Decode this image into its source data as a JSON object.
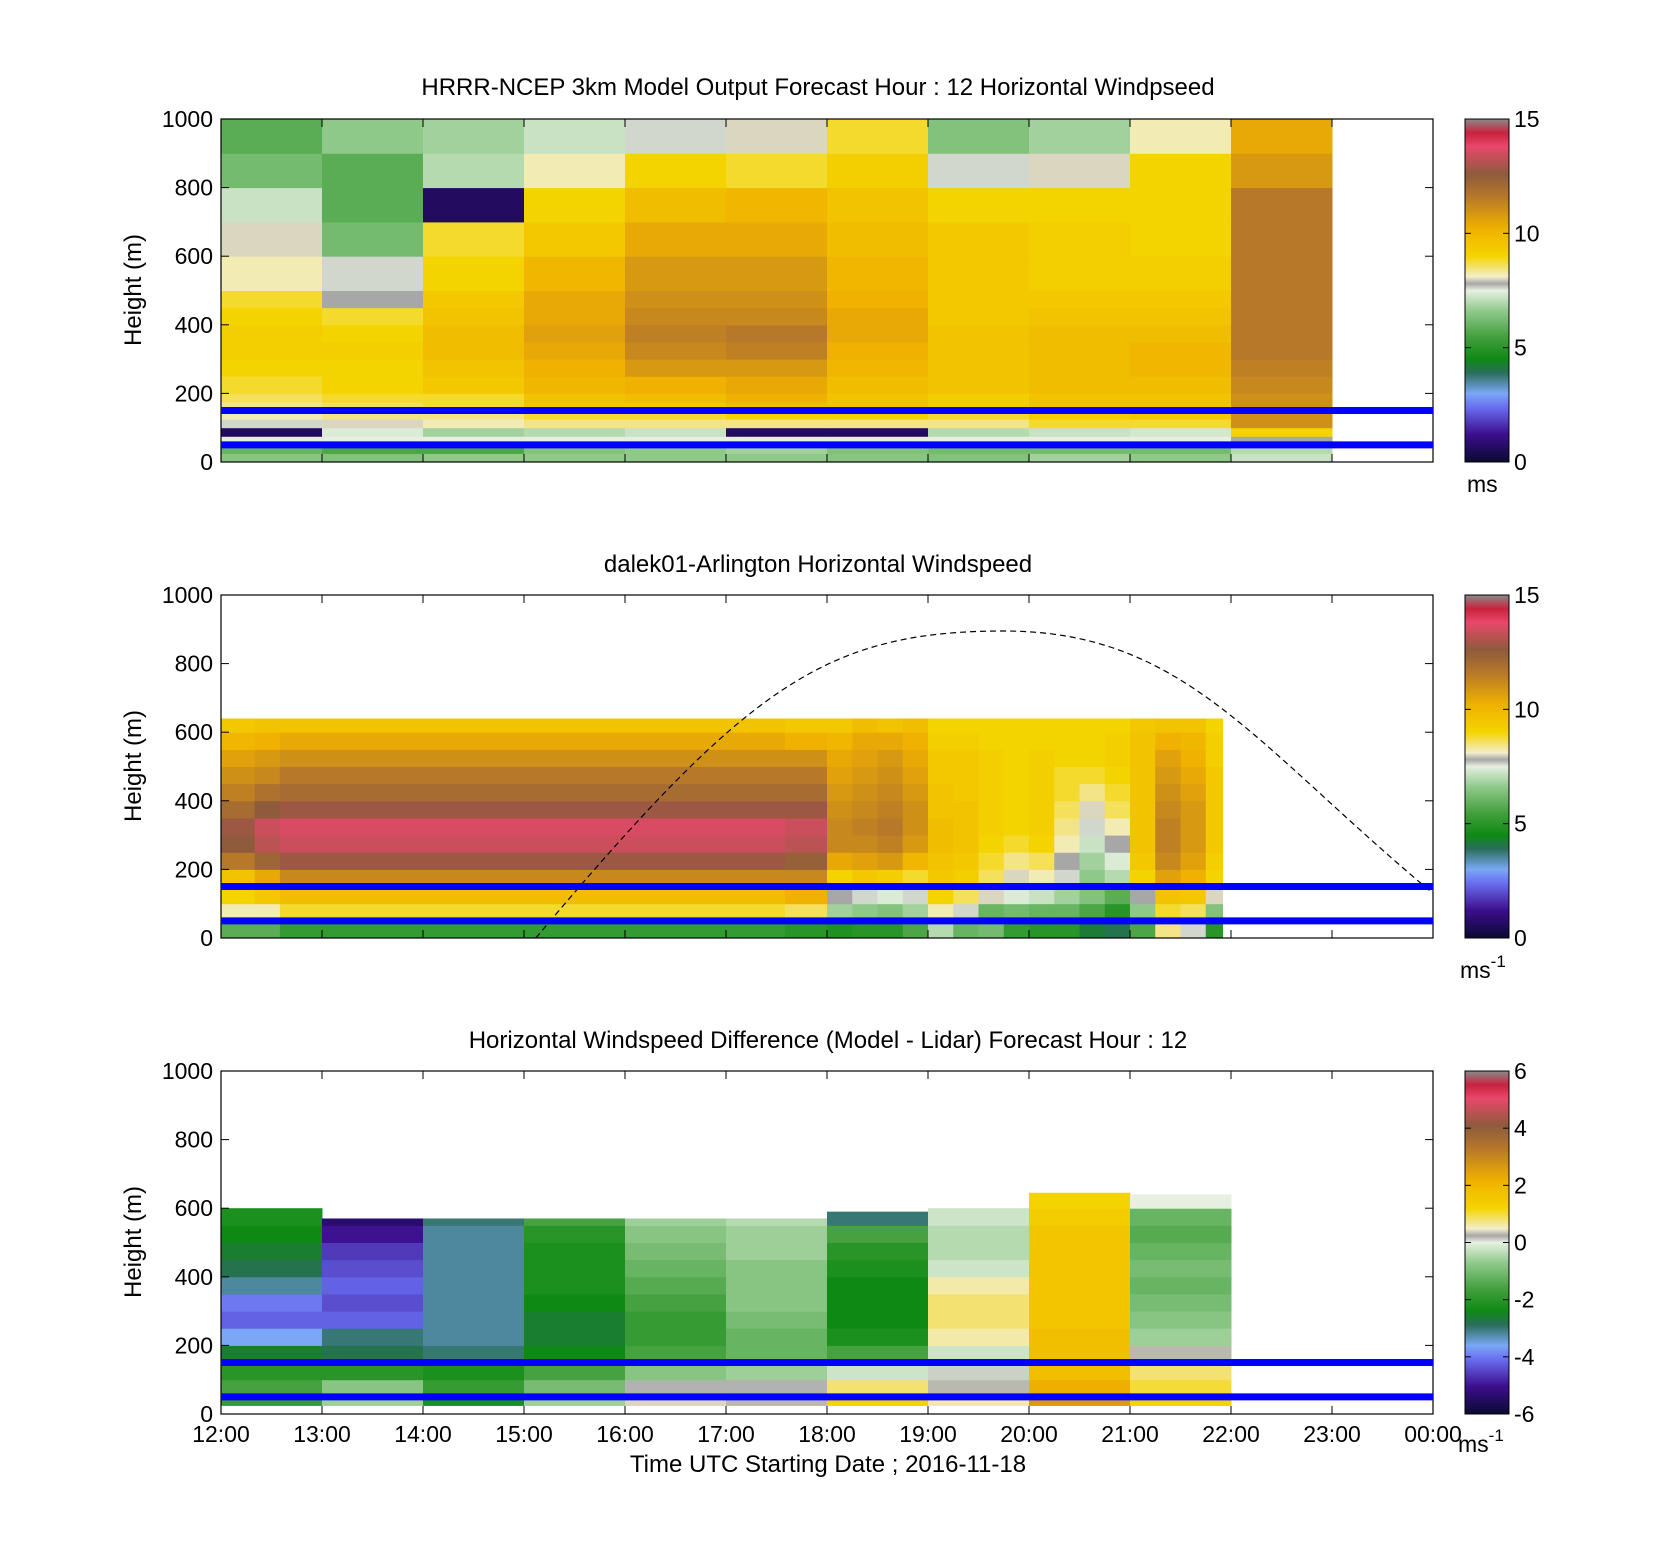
{
  "figure": {
    "xlabel": "Time UTC  Starting Date ; 2016-11-18",
    "xticks": [
      "12:00",
      "13:00",
      "14:00",
      "15:00",
      "16:00",
      "17:00",
      "18:00",
      "19:00",
      "20:00",
      "21:00",
      "22:00",
      "23:00",
      "00:00"
    ]
  },
  "chart_data": [
    {
      "type": "heatmap",
      "title": "HRRR-NCEP 3km Model Output   Forecast Hour : 12 Horizontal Windpseed",
      "ylabel": "Height (m)",
      "yticks": [
        "0",
        "200",
        "400",
        "600",
        "800",
        "1000"
      ],
      "ylim": [
        0,
        1000
      ],
      "x_range": [
        "12:00",
        "00:00"
      ],
      "colorbar": {
        "ticks": [
          "0",
          "5",
          "10",
          "15"
        ],
        "range": [
          0,
          15
        ],
        "unit": "ms"
      },
      "reference_lines_m": [
        50,
        150
      ],
      "columns_start_hour": 12,
      "height_levels_m": [
        0,
        25,
        50,
        75,
        100,
        125,
        150,
        175,
        200,
        250,
        300,
        350,
        400,
        450,
        500,
        600,
        700,
        800,
        900,
        1000
      ],
      "values_ms": [
        [
          6.5,
          6.4,
          6.6,
          6.6,
          6.6,
          6.6,
          6.5,
          6.4,
          6.8,
          6.6,
          7.2
        ],
        [
          6.0,
          5.6,
          5.6,
          6.4,
          6.6,
          6.8,
          6.4,
          6.2,
          6.2,
          6.2,
          7.0
        ],
        [
          7.5,
          7.5,
          7.5,
          7.5,
          7.5,
          7.5,
          7.5,
          7.5,
          7.5,
          7.5,
          7.8
        ],
        [
          0.6,
          7.4,
          6.8,
          7.0,
          7.2,
          0.6,
          0.6,
          7.0,
          7.2,
          7.3,
          9.0
        ],
        [
          7.6,
          8.0,
          8.2,
          8.4,
          8.4,
          8.4,
          8.4,
          8.4,
          8.8,
          8.8,
          11.0
        ],
        [
          8.2,
          8.4,
          8.4,
          8.8,
          8.8,
          9.0,
          9.0,
          8.8,
          9.2,
          9.4,
          11.0
        ],
        [
          8.4,
          8.6,
          8.8,
          9.4,
          9.4,
          9.8,
          9.6,
          9.2,
          9.6,
          9.6,
          11.0
        ],
        [
          8.6,
          8.8,
          8.8,
          9.6,
          9.8,
          10.2,
          9.6,
          9.2,
          9.6,
          9.6,
          11.0
        ],
        [
          8.8,
          9.0,
          9.4,
          10.0,
          10.2,
          10.4,
          9.8,
          9.6,
          9.8,
          9.8,
          11.2
        ],
        [
          9.0,
          9.0,
          9.6,
          10.2,
          10.8,
          10.8,
          10.0,
          9.6,
          9.8,
          10.0,
          11.4
        ],
        [
          9.2,
          9.2,
          9.8,
          10.4,
          11.2,
          11.4,
          10.2,
          9.6,
          9.8,
          10.0,
          11.6
        ],
        [
          9.2,
          9.0,
          9.8,
          10.6,
          11.4,
          11.6,
          10.4,
          9.6,
          9.8,
          9.8,
          11.6
        ],
        [
          9.0,
          8.8,
          9.6,
          10.4,
          11.2,
          11.2,
          10.4,
          9.4,
          9.6,
          9.6,
          11.6
        ],
        [
          8.8,
          7.8,
          9.4,
          10.4,
          11.0,
          11.0,
          10.2,
          9.4,
          9.4,
          9.4,
          11.6
        ],
        [
          8.2,
          7.6,
          9.0,
          10.0,
          10.8,
          10.8,
          10.0,
          9.4,
          9.2,
          9.2,
          11.6
        ],
        [
          8.0,
          6.2,
          8.8,
          9.4,
          10.4,
          10.4,
          9.8,
          9.4,
          9.2,
          9.0,
          11.6
        ],
        [
          7.2,
          5.8,
          0.6,
          9.0,
          9.8,
          10.0,
          9.6,
          9.0,
          9.0,
          9.0,
          11.6
        ],
        [
          6.2,
          5.8,
          7.0,
          8.2,
          9.0,
          8.8,
          9.2,
          7.6,
          8.0,
          9.0,
          10.8
        ],
        [
          5.8,
          6.6,
          6.8,
          7.2,
          7.6,
          8.0,
          8.8,
          6.4,
          6.8,
          8.2,
          10.4
        ],
        [
          5.8,
          7.2,
          6.6,
          6.4,
          6.6,
          8.0,
          8.0,
          6.4,
          6.4,
          7.6,
          10.0
        ]
      ]
    },
    {
      "type": "heatmap",
      "title": "dalek01-Arlington  Horizontal Windspeed",
      "ylabel": "Height (m)",
      "yticks": [
        "0",
        "200",
        "400",
        "600",
        "800",
        "1000"
      ],
      "ylim": [
        0,
        1000
      ],
      "x_range": [
        "12:00",
        "00:00"
      ],
      "colorbar": {
        "ticks": [
          "0",
          "5",
          "10",
          "15"
        ],
        "range": [
          0,
          15
        ],
        "unit": "ms",
        "unit_superscript": "-1"
      },
      "reference_lines_m": [
        50,
        150
      ],
      "dashed_curve": {
        "start": [
          "15:07",
          0
        ],
        "peak": [
          "19:45",
          895
        ],
        "end": [
          "00:00",
          130
        ]
      },
      "column_times": [
        "12:00",
        "12:20",
        "12:35",
        "17:35",
        "18:00",
        "18:15",
        "18:30",
        "18:45",
        "19:00",
        "19:15",
        "19:30",
        "19:45",
        "20:00",
        "20:15",
        "20:30",
        "20:45",
        "21:00",
        "21:15",
        "21:30",
        "21:45"
      ],
      "value_rows_m": [
        0,
        50,
        100,
        150,
        200,
        250,
        300,
        350,
        400,
        450,
        500,
        550,
        600
      ],
      "values_ms": [
        [
          5.8,
          5.8,
          5.2,
          5.0,
          4.8,
          5.0,
          5.0,
          5.6,
          7.0,
          6.0,
          6.2,
          5.2,
          5.0,
          5.0,
          4.2,
          4.0,
          5.6,
          8.4,
          7.6,
          5.0
        ],
        [
          8.2,
          8.2,
          8.8,
          8.6,
          6.8,
          6.6,
          6.4,
          6.8,
          8.2,
          7.6,
          6.0,
          6.2,
          6.0,
          6.0,
          5.6,
          5.0,
          6.6,
          8.8,
          8.6,
          6.4
        ],
        [
          9.0,
          9.4,
          9.8,
          10.2,
          7.8,
          7.6,
          7.4,
          7.6,
          9.0,
          8.6,
          8.0,
          7.4,
          7.2,
          6.8,
          6.4,
          5.8,
          7.8,
          9.6,
          9.4,
          8.0
        ],
        [
          9.6,
          10.4,
          11.2,
          11.2,
          9.0,
          9.4,
          9.2,
          8.8,
          9.4,
          9.2,
          8.6,
          8.0,
          8.2,
          7.6,
          6.6,
          7.0,
          9.0,
          10.6,
          10.2,
          9.0
        ],
        [
          11.6,
          12.2,
          12.8,
          12.4,
          10.4,
          10.6,
          10.8,
          10.0,
          9.6,
          9.4,
          8.8,
          8.4,
          8.6,
          7.8,
          6.8,
          7.4,
          9.4,
          11.2,
          10.6,
          9.2
        ],
        [
          12.6,
          13.2,
          13.4,
          13.2,
          11.2,
          11.2,
          11.4,
          10.8,
          9.8,
          9.6,
          9.0,
          8.8,
          9.0,
          8.2,
          7.2,
          7.8,
          9.6,
          11.4,
          10.8,
          9.4
        ],
        [
          12.8,
          13.4,
          13.6,
          13.4,
          11.2,
          11.4,
          11.6,
          11.0,
          9.8,
          9.6,
          9.2,
          9.0,
          9.2,
          8.4,
          7.6,
          8.2,
          9.6,
          11.4,
          10.8,
          9.4
        ],
        [
          12.0,
          12.6,
          12.8,
          12.8,
          11.0,
          11.2,
          11.4,
          11.0,
          9.6,
          9.6,
          9.2,
          9.0,
          9.2,
          8.6,
          8.0,
          8.6,
          9.6,
          11.2,
          10.8,
          9.4
        ],
        [
          11.4,
          11.8,
          12.0,
          12.0,
          10.8,
          11.0,
          11.2,
          10.8,
          9.6,
          9.4,
          9.2,
          9.0,
          9.2,
          8.8,
          8.4,
          8.8,
          9.6,
          11.0,
          10.6,
          9.4
        ],
        [
          11.0,
          11.2,
          11.6,
          11.6,
          10.6,
          10.8,
          11.0,
          10.6,
          9.4,
          9.4,
          9.2,
          9.0,
          9.2,
          8.8,
          8.8,
          9.0,
          9.6,
          10.8,
          10.4,
          9.4
        ],
        [
          10.6,
          10.8,
          11.0,
          11.0,
          10.4,
          10.6,
          10.8,
          10.4,
          9.4,
          9.4,
          9.2,
          9.0,
          9.2,
          9.0,
          9.0,
          9.2,
          9.6,
          10.6,
          10.2,
          9.2
        ],
        [
          10.0,
          10.2,
          10.4,
          10.2,
          10.0,
          10.4,
          10.4,
          10.2,
          9.2,
          9.2,
          9.0,
          9.0,
          9.0,
          9.0,
          9.0,
          9.2,
          9.6,
          10.2,
          10.0,
          9.2
        ],
        [
          9.4,
          9.6,
          9.6,
          9.4,
          9.4,
          9.8,
          9.6,
          9.8,
          9.0,
          9.0,
          9.0,
          9.0,
          9.0,
          9.0,
          9.0,
          9.0,
          9.4,
          9.6,
          9.6,
          9.0
        ]
      ]
    },
    {
      "type": "heatmap",
      "title": "Horizontal Windspeed Difference (Model - Lidar) Forecast Hour : 12",
      "ylabel": "Height (m)",
      "yticks": [
        "0",
        "200",
        "400",
        "600",
        "800",
        "1000"
      ],
      "ylim": [
        0,
        1000
      ],
      "x_range": [
        "12:00",
        "00:00"
      ],
      "colorbar": {
        "ticks": [
          "-6",
          "-4",
          "-2",
          "0",
          "2",
          "4",
          "6"
        ],
        "range": [
          -6,
          6
        ],
        "unit": "ms",
        "unit_superscript": "-1"
      },
      "reference_lines_m": [
        50,
        150
      ],
      "columns_start_hour": 12,
      "column_top_m": [
        600,
        570,
        570,
        570,
        570,
        570,
        590,
        600,
        645,
        640
      ],
      "value_rows_m": [
        0,
        50,
        100,
        150,
        200,
        250,
        300,
        350,
        400,
        450,
        500,
        550,
        600
      ],
      "values_ms": [
        [
          -1.8,
          -0.6,
          -2.2,
          -0.6,
          0.4,
          0.3,
          1.2,
          0.6,
          2.6,
          1.2
        ],
        [
          -1.6,
          -0.8,
          -1.8,
          -1.0,
          0.2,
          0.2,
          0.8,
          0.3,
          2.2,
          1.0
        ],
        [
          -2.0,
          -2.0,
          -2.2,
          -1.6,
          -0.8,
          -0.6,
          -0.2,
          0.1,
          1.8,
          0.8
        ],
        [
          -2.6,
          -2.8,
          -3.0,
          -2.4,
          -1.6,
          -1.2,
          -1.6,
          -0.2,
          1.8,
          0.3
        ],
        [
          -3.6,
          -3.0,
          -3.2,
          -2.6,
          -1.8,
          -1.2,
          -2.2,
          0.6,
          1.8,
          -0.6
        ],
        [
          -4.2,
          -4.2,
          -3.2,
          -2.6,
          -1.8,
          -1.0,
          -2.4,
          0.8,
          1.6,
          -0.8
        ],
        [
          -4.0,
          -4.4,
          -3.2,
          -2.4,
          -1.6,
          -0.8,
          -2.4,
          0.8,
          1.6,
          -1.0
        ],
        [
          -3.2,
          -4.2,
          -3.2,
          -2.2,
          -1.4,
          -0.8,
          -2.4,
          0.6,
          1.6,
          -1.2
        ],
        [
          -2.8,
          -4.4,
          -3.2,
          -2.2,
          -1.2,
          -0.8,
          -2.2,
          -0.2,
          1.6,
          -1.0
        ],
        [
          -2.6,
          -4.6,
          -3.2,
          -2.2,
          -1.0,
          -0.6,
          -2.0,
          -0.4,
          1.6,
          -1.2
        ],
        [
          -2.4,
          -5.0,
          -3.2,
          -2.0,
          -0.8,
          -0.6,
          -1.6,
          -0.4,
          1.6,
          -1.4
        ],
        [
          -2.2,
          -5.4,
          -3.0,
          -1.6,
          -0.6,
          -0.4,
          -3.0,
          -0.2,
          1.4,
          -1.2
        ],
        [
          -2.0,
          -5.0,
          -2.8,
          -1.4,
          0.6,
          0.2,
          -1.2,
          0.0,
          1.2,
          0.0
        ]
      ]
    }
  ],
  "colors": {
    "reference_line": "#0000ff",
    "outline": "#000000"
  }
}
